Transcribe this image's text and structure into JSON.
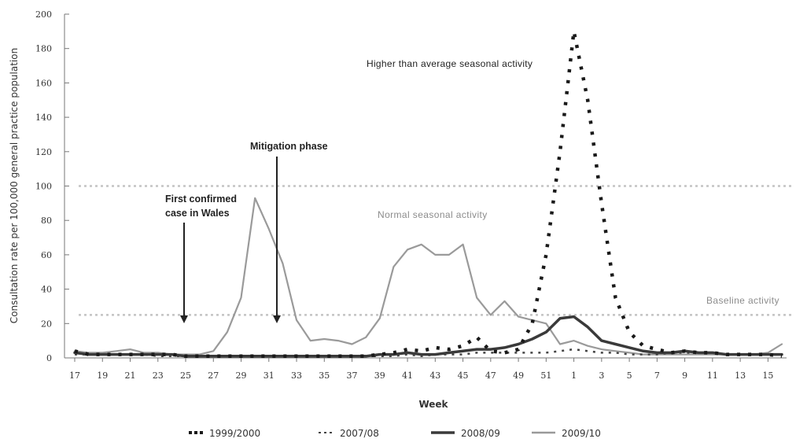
{
  "chart_data": {
    "type": "line",
    "title": "",
    "xlabel": "Week",
    "ylabel": "Consultation rate per 100,000 general practice population",
    "ylim": [
      0,
      200
    ],
    "yticks": [
      0,
      20,
      40,
      60,
      80,
      100,
      120,
      140,
      160,
      180,
      200
    ],
    "x": [
      "17",
      "18",
      "19",
      "20",
      "21",
      "22",
      "23",
      "24",
      "25",
      "26",
      "27",
      "28",
      "29",
      "30",
      "31",
      "32",
      "33",
      "34",
      "35",
      "36",
      "37",
      "38",
      "39",
      "40",
      "41",
      "42",
      "43",
      "44",
      "45",
      "46",
      "47",
      "48",
      "49",
      "50",
      "51",
      "52",
      "1",
      "2",
      "3",
      "4",
      "5",
      "6",
      "7",
      "8",
      "9",
      "10",
      "11",
      "12",
      "13",
      "14",
      "15",
      "16"
    ],
    "xtick_labels": [
      "17",
      "19",
      "21",
      "23",
      "25",
      "27",
      "29",
      "31",
      "33",
      "35",
      "37",
      "39",
      "41",
      "43",
      "45",
      "47",
      "49",
      "51",
      "1",
      "3",
      "5",
      "7",
      "9",
      "11",
      "13",
      "15"
    ],
    "series": [
      {
        "name": "1999/2000",
        "style": "dotted-bold",
        "color": "#1a1a1a",
        "values": [
          4,
          2,
          2,
          2,
          2,
          2,
          2,
          2,
          1,
          1,
          1,
          1,
          1,
          1,
          1,
          1,
          1,
          1,
          1,
          1,
          1,
          1,
          2,
          3,
          5,
          4,
          6,
          5,
          7,
          12,
          4,
          3,
          5,
          20,
          60,
          120,
          190,
          150,
          90,
          35,
          15,
          7,
          5,
          3,
          4,
          3,
          3,
          2,
          2,
          2,
          2,
          1
        ]
      },
      {
        "name": "2007/08",
        "style": "dotted-light",
        "color": "#444444",
        "values": [
          2,
          2,
          2,
          2,
          2,
          2,
          1,
          1,
          1,
          1,
          1,
          1,
          1,
          1,
          1,
          1,
          1,
          1,
          1,
          1,
          1,
          1,
          1,
          1,
          2,
          1,
          2,
          2,
          2,
          3,
          3,
          3,
          3,
          3,
          3,
          4,
          5,
          4,
          3,
          3,
          2,
          2,
          2,
          3,
          3,
          3,
          3,
          2,
          2,
          2,
          2,
          2
        ]
      },
      {
        "name": "2008/09",
        "style": "solid-bold",
        "color": "#3a3a3a",
        "values": [
          3,
          2,
          2,
          2,
          2,
          2,
          2,
          2,
          1,
          1,
          1,
          1,
          1,
          1,
          1,
          1,
          1,
          1,
          1,
          1,
          1,
          1,
          2,
          2,
          3,
          2,
          2,
          3,
          4,
          5,
          5,
          6,
          8,
          11,
          15,
          23,
          24,
          18,
          10,
          8,
          6,
          4,
          3,
          3,
          4,
          3,
          3,
          2,
          2,
          2,
          2,
          2
        ]
      },
      {
        "name": "2009/10",
        "style": "solid-light",
        "color": "#9a9a9a",
        "values": [
          4,
          3,
          3,
          4,
          5,
          3,
          3,
          2,
          2,
          2,
          4,
          15,
          35,
          93,
          75,
          55,
          22,
          10,
          11,
          10,
          8,
          12,
          23,
          53,
          63,
          66,
          60,
          60,
          66,
          35,
          25,
          33,
          24,
          22,
          20,
          8,
          10,
          7,
          5,
          4,
          3,
          2,
          2,
          2,
          2,
          2,
          2,
          2,
          2,
          2,
          3,
          8
        ]
      }
    ],
    "reference_lines": [
      {
        "label": "Higher than average seasonal activity",
        "value": 100
      },
      {
        "label": "Baseline activity",
        "value": 25
      }
    ],
    "annotations": [
      {
        "lines": [
          "First confirmed",
          "case in Wales"
        ],
        "week": "25"
      },
      {
        "lines": [
          "Mitigation phase"
        ],
        "week": "31"
      },
      {
        "lines": [
          "Normal seasonal activity"
        ]
      }
    ],
    "legend_position": "bottom",
    "grid": false
  }
}
